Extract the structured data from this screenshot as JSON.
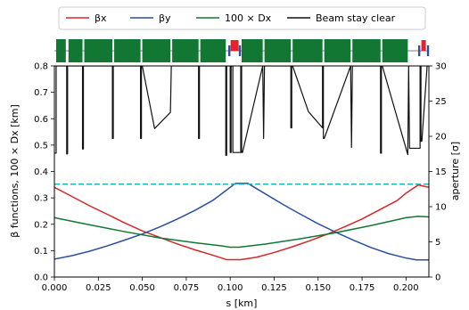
{
  "chart_data": {
    "type": "line",
    "xlabel": "s [km]",
    "ylabel": "β functions, 100 × Dx [km]",
    "y2label": "aperture [σ]",
    "xlim": [
      0.0,
      0.213
    ],
    "ylim": [
      0.0,
      0.8
    ],
    "y2lim": [
      0,
      30
    ],
    "xticks": [
      0.0,
      0.025,
      0.05,
      0.075,
      0.1,
      0.125,
      0.15,
      0.175,
      0.2
    ],
    "xtick_labels": [
      "0.000",
      "0.025",
      "0.050",
      "0.075",
      "0.100",
      "0.125",
      "0.150",
      "0.175",
      "0.200"
    ],
    "yticks": [
      0.0,
      0.1,
      0.2,
      0.3,
      0.4,
      0.5,
      0.6,
      0.7,
      0.8
    ],
    "ytick_labels": [
      "0.0",
      "0.1",
      "0.2",
      "0.3",
      "0.4",
      "0.5",
      "0.6",
      "0.7",
      "0.8"
    ],
    "y2ticks": [
      0,
      5,
      10,
      15,
      20,
      25,
      30
    ],
    "y2tick_labels": [
      "0",
      "5",
      "10",
      "15",
      "20",
      "25",
      "30"
    ],
    "legend": {
      "placement": "top",
      "entries": [
        "βx",
        "βy",
        "100 × Dx",
        "Beam stay clear"
      ]
    },
    "colors": {
      "beta_x": "#d62728",
      "beta_y": "#2c4f9e",
      "dispersion": "#117733",
      "bsc": "#111111",
      "threshold": "#1fb5c4",
      "dipole": "#117733",
      "quad_focus": "#e8222b",
      "quad_defocus": "#2c4f9e"
    },
    "series": [
      {
        "name": "βx",
        "axis": "left",
        "x": [
          0.0,
          0.01,
          0.02,
          0.03,
          0.04,
          0.05,
          0.06,
          0.07,
          0.08,
          0.09,
          0.098,
          0.106,
          0.115,
          0.125,
          0.135,
          0.145,
          0.155,
          0.165,
          0.175,
          0.185,
          0.195,
          0.2,
          0.207,
          0.213
        ],
        "y": [
          0.34,
          0.305,
          0.27,
          0.238,
          0.205,
          0.175,
          0.15,
          0.125,
          0.103,
          0.083,
          0.066,
          0.066,
          0.075,
          0.093,
          0.114,
          0.137,
          0.162,
          0.19,
          0.22,
          0.255,
          0.29,
          0.318,
          0.349,
          0.34
        ]
      },
      {
        "name": "βy",
        "axis": "left",
        "x": [
          0.0,
          0.01,
          0.02,
          0.03,
          0.04,
          0.05,
          0.06,
          0.07,
          0.08,
          0.09,
          0.097,
          0.103,
          0.11,
          0.12,
          0.13,
          0.14,
          0.15,
          0.16,
          0.17,
          0.18,
          0.19,
          0.2,
          0.206,
          0.213
        ],
        "y": [
          0.068,
          0.081,
          0.098,
          0.118,
          0.14,
          0.163,
          0.19,
          0.22,
          0.253,
          0.29,
          0.325,
          0.355,
          0.355,
          0.315,
          0.275,
          0.238,
          0.202,
          0.17,
          0.14,
          0.112,
          0.089,
          0.072,
          0.065,
          0.065
        ]
      },
      {
        "name": "100 × Dx",
        "axis": "left",
        "x": [
          0.0,
          0.02,
          0.04,
          0.06,
          0.08,
          0.095,
          0.1,
          0.105,
          0.12,
          0.14,
          0.16,
          0.18,
          0.2,
          0.207,
          0.213
        ],
        "y": [
          0.225,
          0.198,
          0.172,
          0.148,
          0.13,
          0.118,
          0.113,
          0.113,
          0.125,
          0.145,
          0.168,
          0.195,
          0.225,
          0.23,
          0.228
        ]
      },
      {
        "name": "Beam stay clear",
        "axis": "right",
        "x": [
          0.0,
          0.001,
          0.001,
          0.007,
          0.007,
          0.0075,
          0.0075,
          0.008,
          0.016,
          0.016,
          0.0165,
          0.0165,
          0.017,
          0.033,
          0.033,
          0.0335,
          0.0335,
          0.034,
          0.049,
          0.049,
          0.0495,
          0.0495,
          0.05,
          0.057,
          0.066,
          0.066,
          0.0665,
          0.0665,
          0.067,
          0.082,
          0.082,
          0.0825,
          0.0825,
          0.083,
          0.0975,
          0.0975,
          0.098,
          0.098,
          0.0985,
          0.1,
          0.1,
          0.1005,
          0.1005,
          0.1015,
          0.1015,
          0.106,
          0.106,
          0.1065,
          0.1065,
          0.107,
          0.1185,
          0.1185,
          0.119,
          0.119,
          0.1195,
          0.1345,
          0.1345,
          0.135,
          0.135,
          0.1355,
          0.1445,
          0.1525,
          0.1525,
          0.153,
          0.153,
          0.1535,
          0.1685,
          0.1685,
          0.169,
          0.169,
          0.1695,
          0.1855,
          0.1855,
          0.186,
          0.186,
          0.1865,
          0.201,
          0.201,
          0.2015,
          0.2015,
          0.202,
          0.208,
          0.208,
          0.2085,
          0.2085,
          0.209,
          0.212,
          0.212,
          0.213
        ],
        "y": [
          17.6,
          17.6,
          30,
          30,
          17.5,
          17.5,
          30,
          30,
          30,
          18.2,
          18.2,
          30,
          30,
          30,
          19.7,
          19.7,
          30,
          30,
          30,
          19.7,
          19.7,
          30,
          30,
          21.1,
          23.4,
          23.4,
          30,
          30,
          30,
          30,
          19.7,
          19.7,
          30,
          30,
          30,
          17.3,
          17.3,
          30,
          30,
          30,
          17.7,
          17.7,
          30,
          30,
          17.7,
          17.7,
          30,
          30,
          17.7,
          17.7,
          30,
          30,
          19.7,
          19.7,
          30,
          30,
          21.2,
          21.2,
          30,
          30,
          23.5,
          21.2,
          30,
          30,
          19.7,
          19.7,
          30,
          30,
          18.4,
          18.4,
          30,
          30,
          17.6,
          17.6,
          30,
          30,
          17.4,
          17.4,
          30,
          30,
          18.3,
          18.3,
          30,
          30,
          19.3,
          19.3,
          30,
          30,
          30
        ]
      },
      {
        "name": "",
        "axis": "right",
        "style": "dashed",
        "x": [
          0.0,
          0.213
        ],
        "y": [
          13.2,
          13.2
        ]
      }
    ],
    "lattice": {
      "dipoles": [
        [
          0.001,
          0.0065
        ],
        [
          0.008,
          0.016
        ],
        [
          0.017,
          0.033
        ],
        [
          0.034,
          0.049
        ],
        [
          0.05,
          0.066
        ],
        [
          0.067,
          0.082
        ],
        [
          0.083,
          0.0975
        ],
        [
          0.1065,
          0.1185
        ],
        [
          0.1195,
          0.1345
        ],
        [
          0.1355,
          0.1525
        ],
        [
          0.1535,
          0.1685
        ],
        [
          0.1695,
          0.1855
        ],
        [
          0.1865,
          0.201
        ]
      ],
      "quads": [
        {
          "s": 0.0995,
          "kind": "defocus"
        },
        {
          "s": 0.1015,
          "kind": "focus"
        },
        {
          "s": 0.1035,
          "kind": "focus"
        },
        {
          "s": 0.1055,
          "kind": "defocus"
        },
        {
          "s": 0.2075,
          "kind": "defocus"
        },
        {
          "s": 0.21,
          "kind": "focus"
        },
        {
          "s": 0.2125,
          "kind": "defocus"
        }
      ]
    }
  }
}
